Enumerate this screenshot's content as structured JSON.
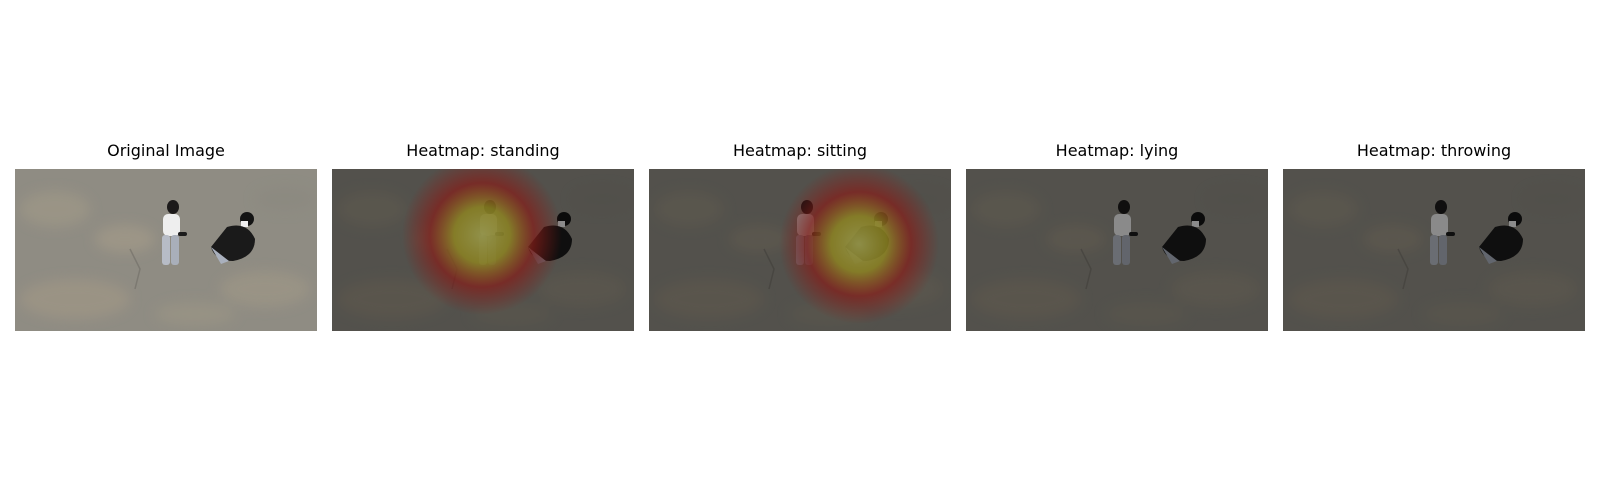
{
  "panels": [
    {
      "title": "Original Image",
      "heatmap": "none",
      "dim": false
    },
    {
      "title": "Heatmap: standing",
      "heatmap": "standing",
      "dim": true
    },
    {
      "title": "Heatmap: sitting",
      "heatmap": "sitting",
      "dim": true
    },
    {
      "title": "Heatmap: lying",
      "heatmap": "none",
      "dim": true
    },
    {
      "title": "Heatmap: throwing",
      "heatmap": "none",
      "dim": true
    }
  ],
  "colors": {
    "ground": "#8f8c83",
    "heat_core": "#ffff80",
    "heat_mid": "#f2e23a",
    "heat_edge": "#e8322a"
  },
  "icons": {
    "person_standing": "person-standing-figure",
    "person_sitting": "person-sitting-figure"
  }
}
